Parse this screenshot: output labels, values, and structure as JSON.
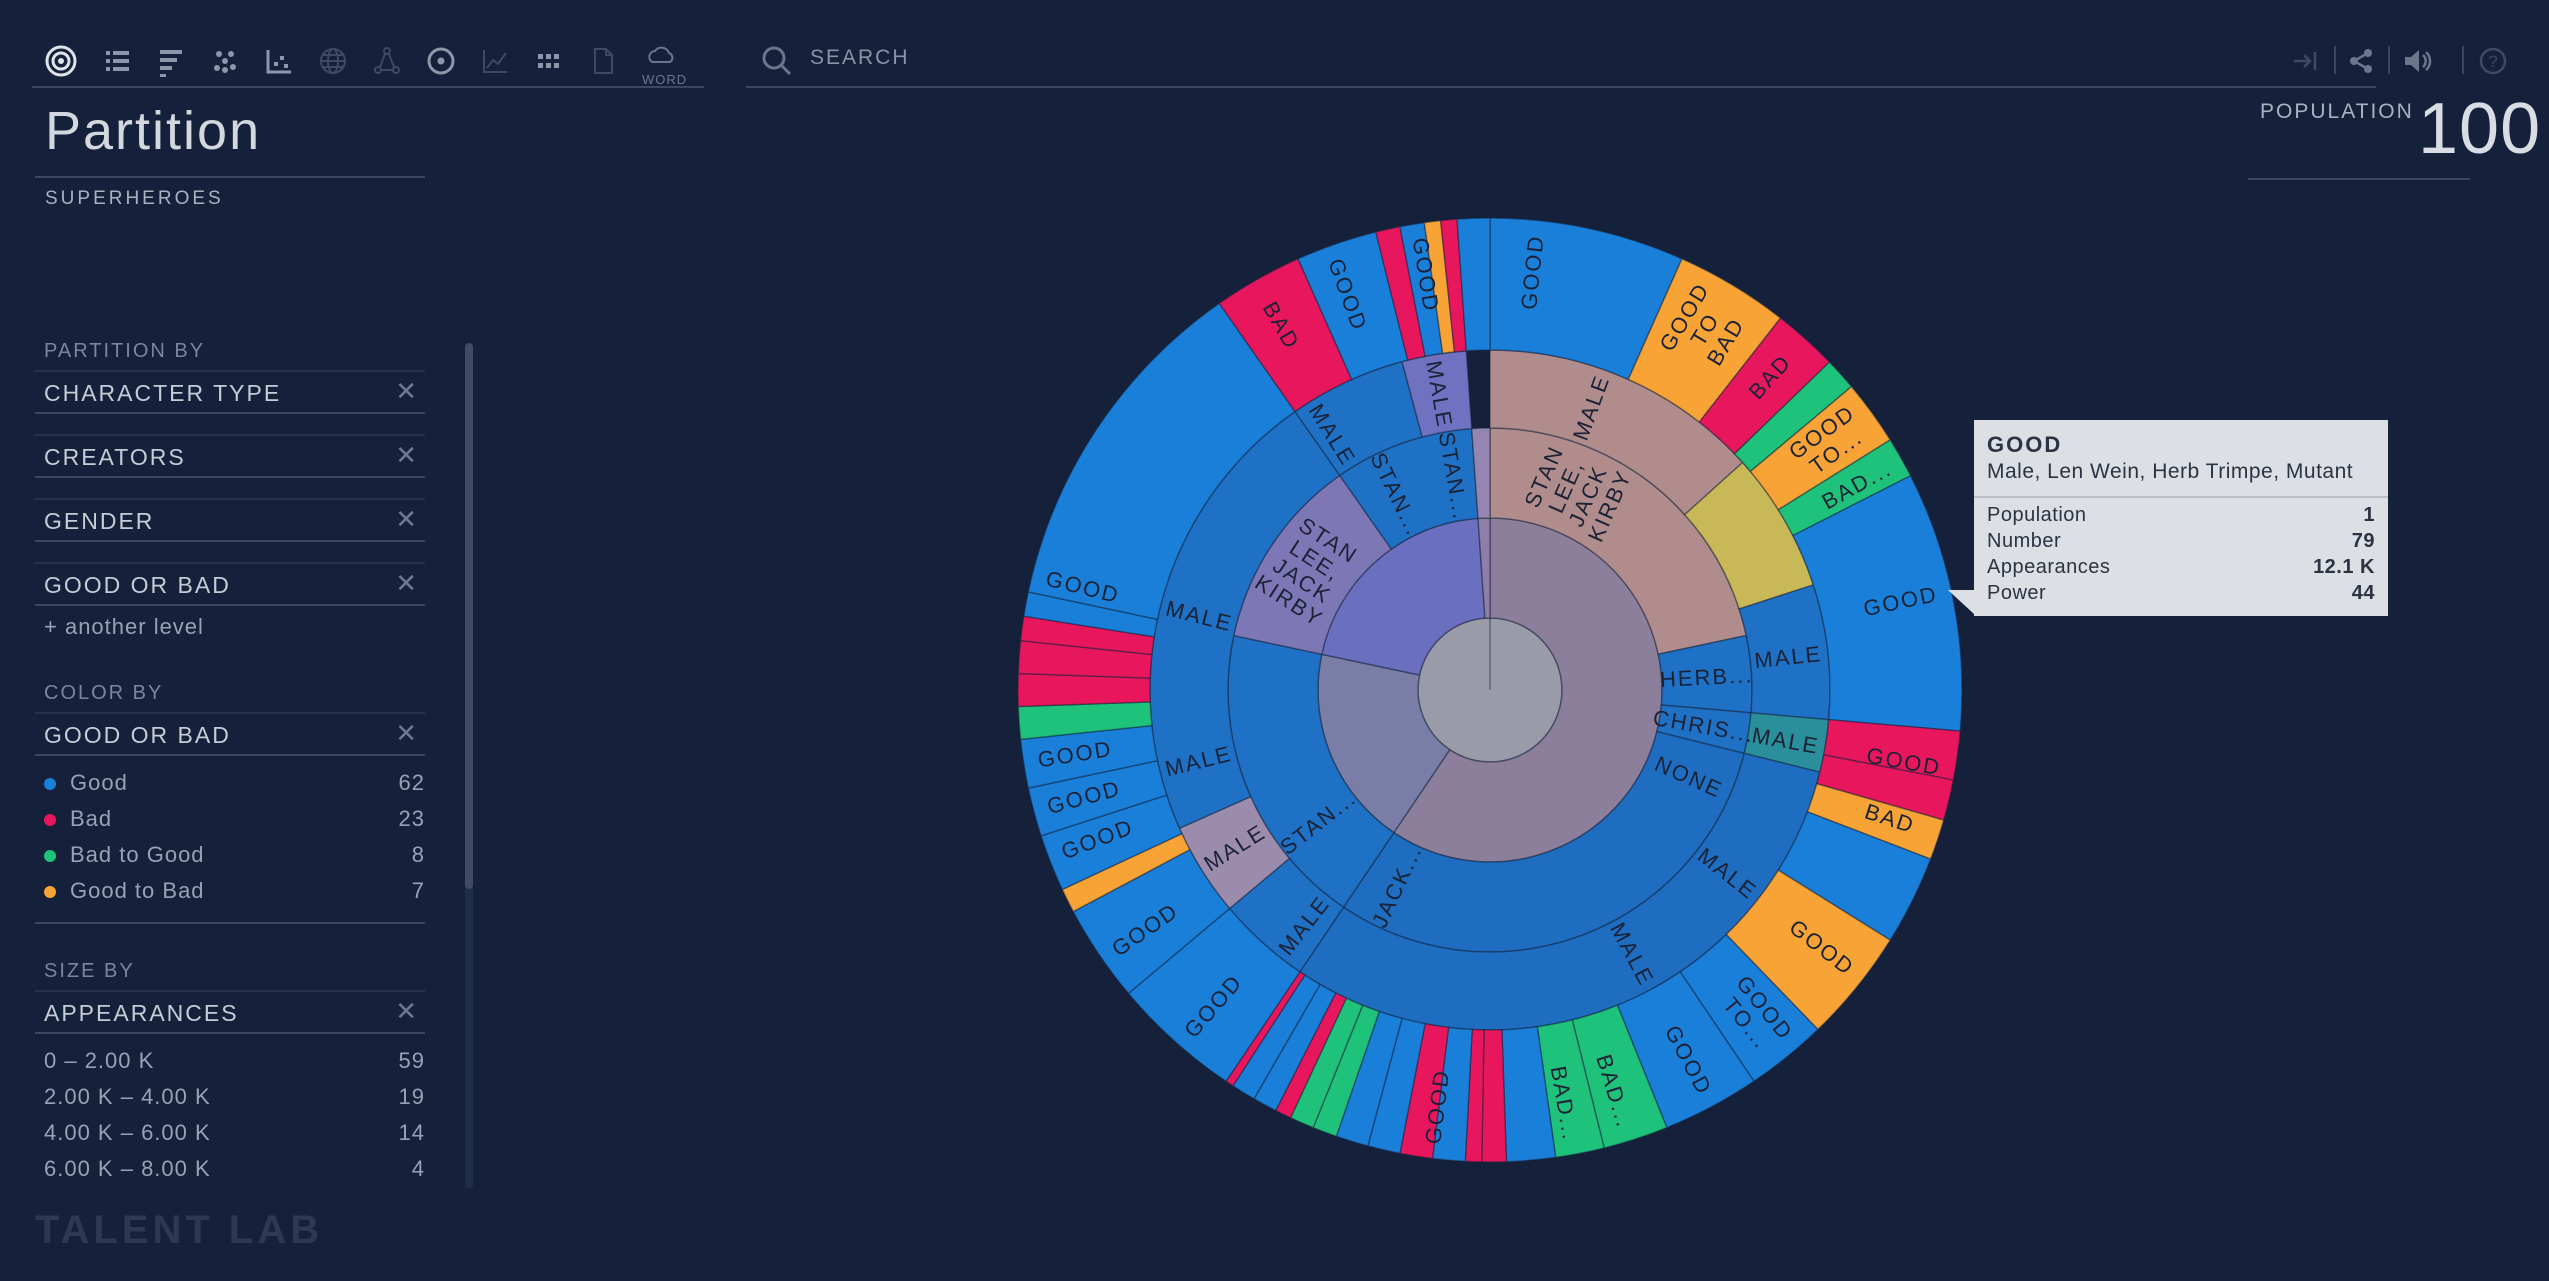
{
  "toolbar": {
    "icons": [
      "sunburst-icon",
      "list-icon",
      "bars-icon",
      "bubbles-icon",
      "scatter-icon",
      "globe-icon",
      "network-icon",
      "radar-icon",
      "line-chart-icon",
      "grid-dots-icon",
      "document-icon",
      "word-cloud-icon"
    ],
    "word_label": "WORD"
  },
  "page": {
    "title": "Partition",
    "subtitle": "SUPERHEROES"
  },
  "partition": {
    "label": "PARTITION BY",
    "levels": [
      "CHARACTER TYPE",
      "CREATORS",
      "GENDER",
      "GOOD OR BAD"
    ],
    "add_level": "+ another level"
  },
  "color_by": {
    "label": "COLOR BY",
    "field": "GOOD OR BAD",
    "legend": [
      {
        "label": "Good",
        "count": "62",
        "color": "#1a7fd9"
      },
      {
        "label": "Bad",
        "count": "23",
        "color": "#e8175d"
      },
      {
        "label": "Bad to Good",
        "count": "8",
        "color": "#1ec27a"
      },
      {
        "label": "Good to Bad",
        "count": "7",
        "color": "#f7a335"
      }
    ]
  },
  "size_by": {
    "label": "SIZE BY",
    "field": "APPEARANCES",
    "bins": [
      {
        "label": "0 – 2.00 K",
        "count": "59"
      },
      {
        "label": "2.00 K – 4.00 K",
        "count": "19"
      },
      {
        "label": "4.00 K – 6.00 K",
        "count": "14"
      },
      {
        "label": "6.00 K – 8.00 K",
        "count": "4"
      }
    ]
  },
  "brand": "TALENT LAB",
  "search": {
    "placeholder": "SEARCH"
  },
  "population": {
    "label": "POPULATION",
    "value": "100"
  },
  "chart_data": {
    "type": "sunburst",
    "colors": {
      "good": "#1a7fd9",
      "bad": "#e8175d",
      "bad_to_good": "#1ec27a",
      "good_to_bad": "#f7a335",
      "neutral": "#8a86a0"
    },
    "labels": [
      "GOOD",
      "GOOD TO BAD",
      "BAD",
      "GOOD TO...",
      "BAD...",
      "MALE",
      "STAN LEE, JACK KIRBY",
      "HERB...",
      "CHRIS...",
      "NONE",
      "STAN...",
      "JACK...",
      "STAN LEE, JACK KIRBY"
    ]
  },
  "tooltip": {
    "title": "GOOD",
    "subtitle": "Male, Len Wein, Herb Trimpe, Mutant",
    "rows": [
      {
        "label": "Population",
        "value": "1"
      },
      {
        "label": "Number",
        "value": "79"
      },
      {
        "label": "Appearances",
        "value": "12.1 K"
      },
      {
        "label": "Power",
        "value": "44"
      }
    ]
  }
}
